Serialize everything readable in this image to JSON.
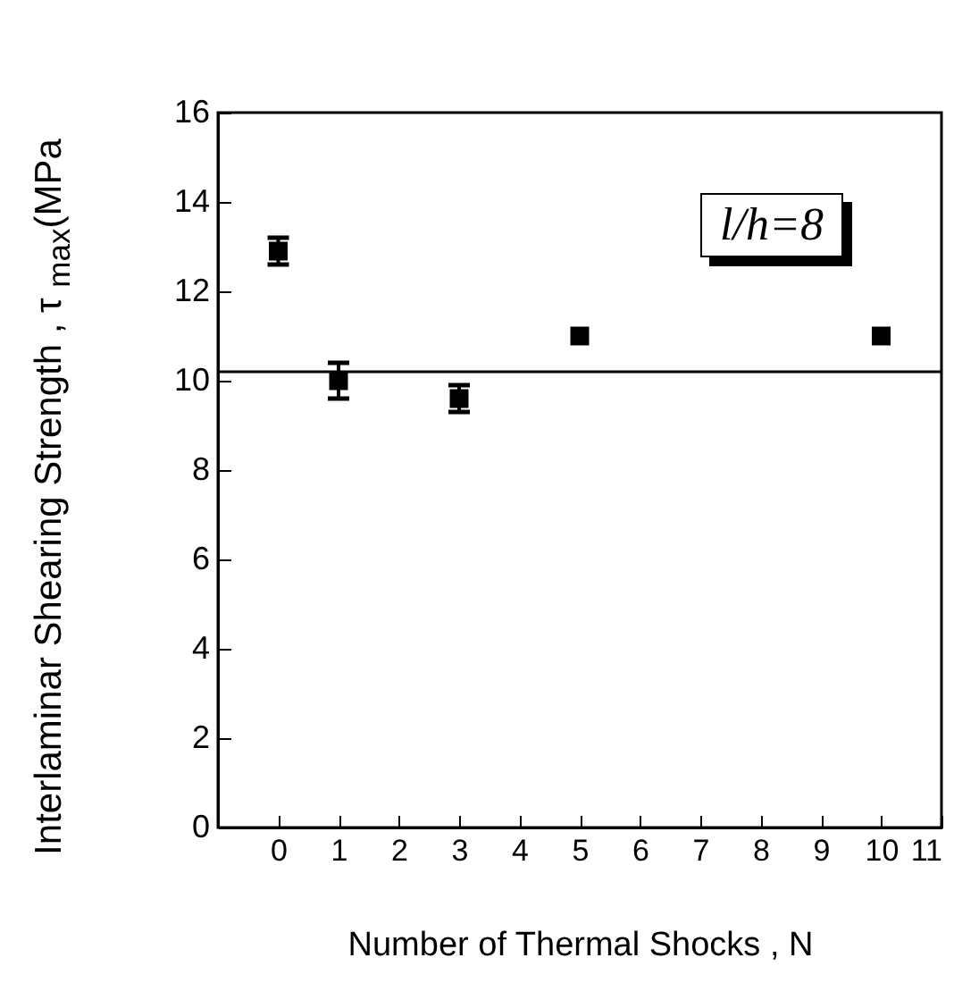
{
  "chart_data": {
    "type": "scatter",
    "xlabel": "Number of Thermal Shocks  , N",
    "ylabel": "Interlaminar Shearing Strength , τ $_{max}$(MPa",
    "x": [
      0,
      1,
      3,
      5,
      10
    ],
    "series": [
      {
        "color": "#000000",
        "values": [
          12.9,
          10.0,
          9.6,
          11.0,
          11.0
        ],
        "errors": [
          0.3,
          0.4,
          0.3,
          null,
          null
        ]
      }
    ],
    "xlim": [
      -1,
      11
    ],
    "xticks": [
      0,
      1,
      2,
      3,
      4,
      5,
      6,
      7,
      8,
      9,
      10,
      11
    ],
    "ylim": [
      0,
      16
    ],
    "yticks": [
      0,
      2,
      4,
      6,
      8,
      10,
      12,
      14,
      16
    ],
    "ref_lines": [
      {
        "axis": "y",
        "value": 10.2,
        "color": "#000000"
      }
    ],
    "annotations": [
      "l/h=8"
    ],
    "marker": "square",
    "grid": false
  }
}
